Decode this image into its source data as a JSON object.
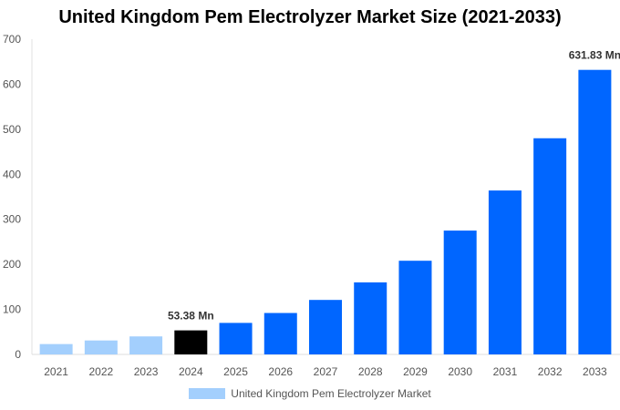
{
  "chart_data": {
    "type": "bar",
    "title": "United Kingdom Pem Electrolyzer Market Size (2021-2033)",
    "categories": [
      "2021",
      "2022",
      "2023",
      "2024",
      "2025",
      "2026",
      "2027",
      "2028",
      "2029",
      "2030",
      "2031",
      "2032",
      "2033"
    ],
    "series": [
      {
        "name": "United Kingdom Pem Electrolyzer Market",
        "values": [
          23,
          31,
          40,
          53.38,
          70,
          92,
          121,
          160,
          208,
          275,
          364,
          480,
          631.83
        ]
      }
    ],
    "data_labels": [
      {
        "category": "2024",
        "text": "53.38 Mn"
      },
      {
        "category": "2033",
        "text": "631.83 Mn"
      }
    ],
    "ylim": [
      0,
      700
    ],
    "yticks": [
      0,
      100,
      200,
      300,
      400,
      500,
      600,
      700
    ],
    "grid": false,
    "legend": "bottom",
    "colors": {
      "historical": "#a3cffd",
      "base_year": "#000000",
      "forecast": "#0066ff"
    }
  }
}
